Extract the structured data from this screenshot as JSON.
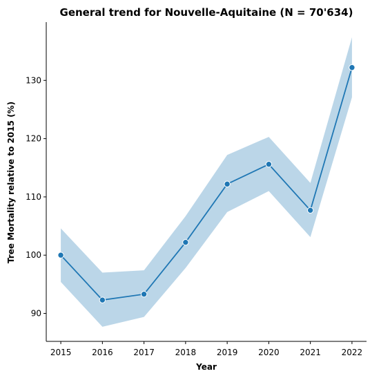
{
  "chart_data": {
    "type": "line",
    "title": "General trend for Nouvelle-Aquitaine  (N = 70'634)",
    "xlabel": "Year",
    "ylabel": "Tree Mortality relative to 2015 (%)",
    "x": [
      2015,
      2016,
      2017,
      2018,
      2019,
      2020,
      2021,
      2022
    ],
    "x_tick_labels": [
      "2015",
      "2016",
      "2017",
      "2018",
      "2019",
      "2020",
      "2021",
      "2022"
    ],
    "y_ticks": [
      90,
      100,
      110,
      120,
      130
    ],
    "y_tick_labels": [
      "90",
      "100",
      "110",
      "120",
      "130"
    ],
    "ylim": [
      85.2,
      140.0
    ],
    "grid": false,
    "series": [
      {
        "values": [
          100.0,
          92.3,
          93.3,
          102.2,
          112.2,
          115.6,
          107.7,
          132.2
        ],
        "ci_lower": [
          95.4,
          87.7,
          89.4,
          97.8,
          107.4,
          111.0,
          103.1,
          127.1
        ],
        "ci_upper": [
          104.6,
          97.0,
          97.4,
          106.7,
          117.2,
          120.3,
          112.4,
          137.4
        ],
        "color": "#1f77b4",
        "band_color": "#1f77b4"
      }
    ]
  }
}
